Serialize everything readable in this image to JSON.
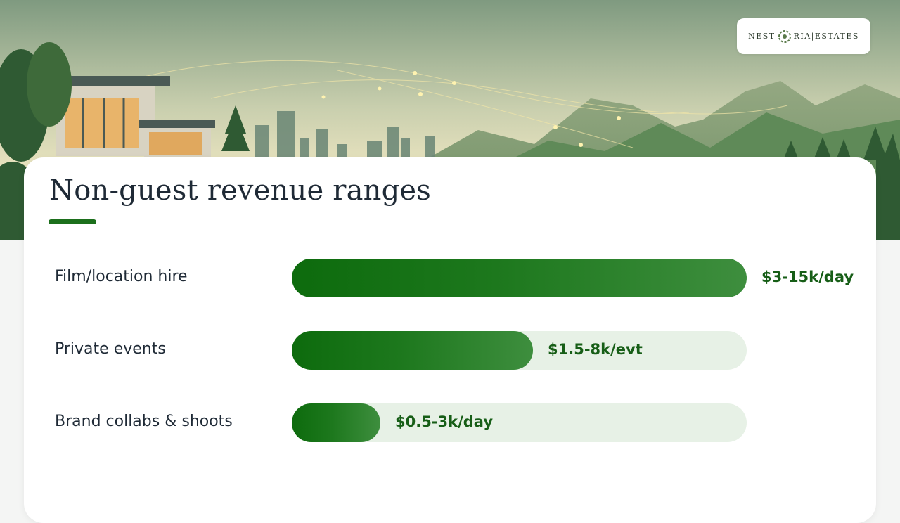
{
  "brand": {
    "logo_left": "NEST",
    "logo_right": "RIA|ESTATES"
  },
  "colors": {
    "accent": "#1c6f1c",
    "track": "#e7f1e6",
    "value_text": "#175e17"
  },
  "chart_data": {
    "type": "bar",
    "orientation": "horizontal",
    "title": "Non-guest revenue ranges",
    "categories": [
      "Film/location hire",
      "Private events",
      "Brand collabs & shoots"
    ],
    "values": [
      1.0,
      0.53,
      0.195
    ],
    "value_labels": [
      "$3-15k/day",
      "$1.5-8k/evt",
      "$0.5-3k/day"
    ],
    "xlim": [
      0,
      1
    ],
    "grid": false,
    "legend": "none"
  }
}
